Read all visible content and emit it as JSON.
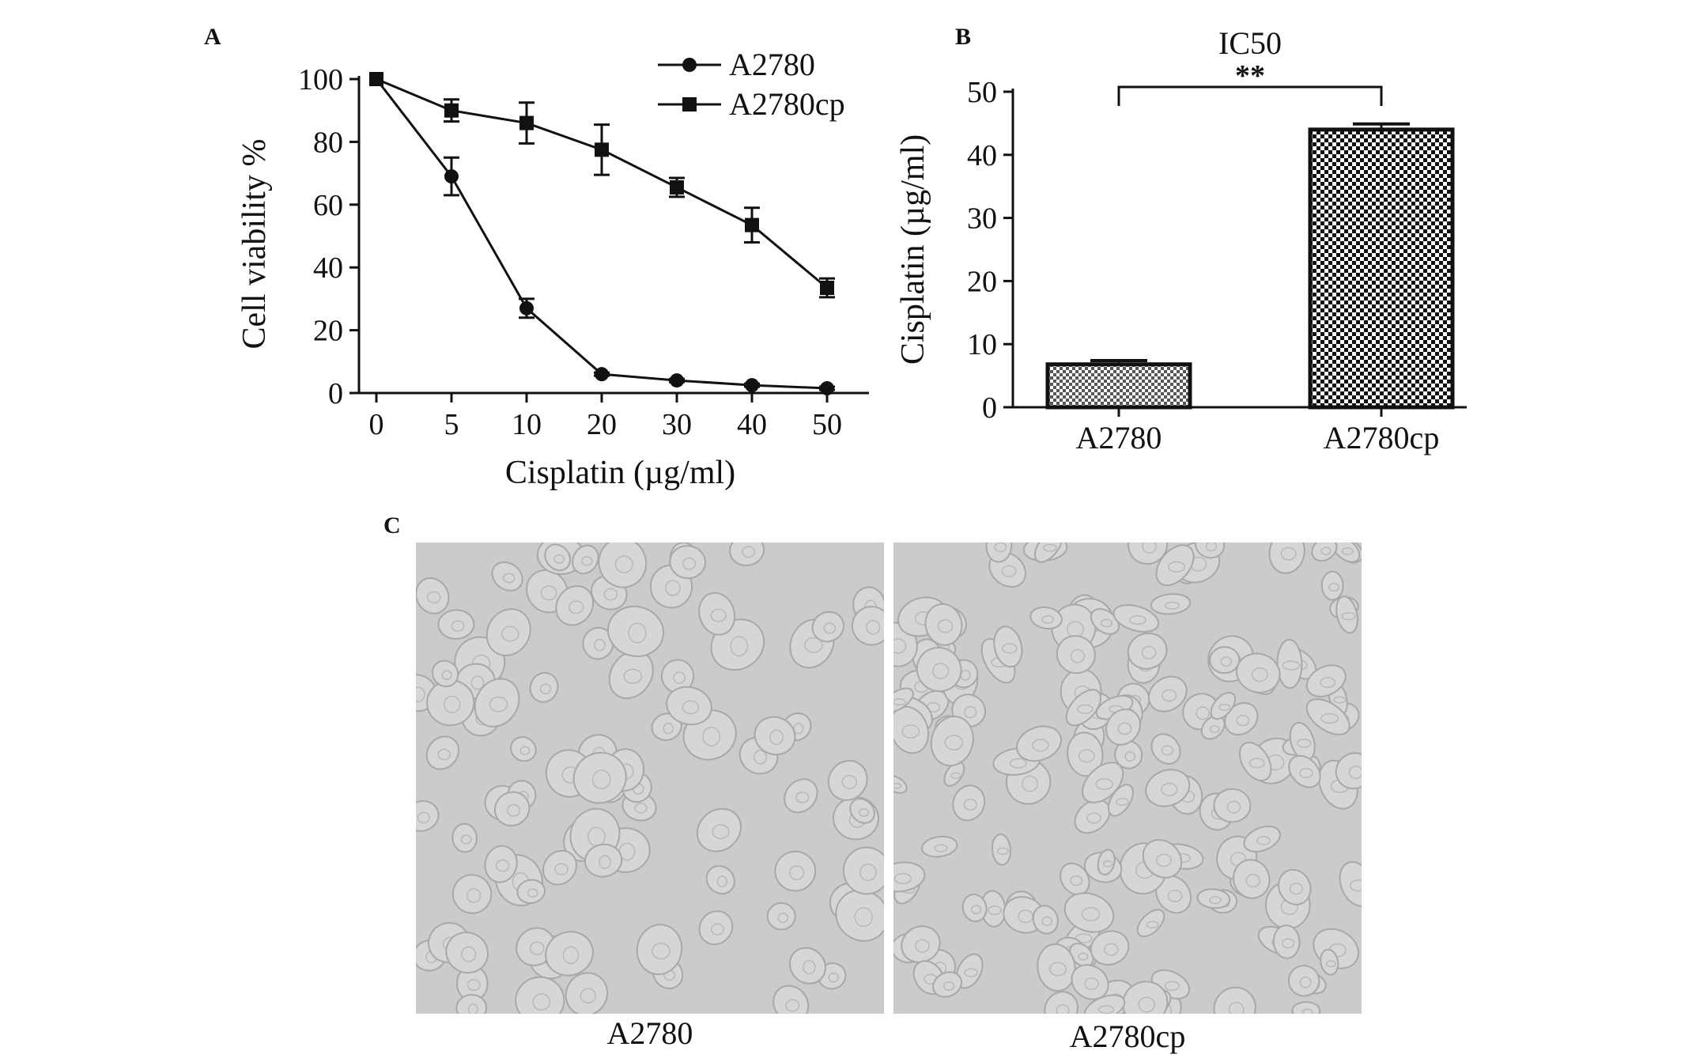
{
  "panels": {
    "A": "A",
    "B": "B",
    "C": "C"
  },
  "chart_data": [
    {
      "panel": "A",
      "type": "line",
      "xlabel": "Cisplatin (µg/ml)",
      "ylabel": "Cell viability %",
      "categories": [
        "0",
        "5",
        "10",
        "20",
        "30",
        "40",
        "50"
      ],
      "ylim": [
        0,
        100
      ],
      "yticks": [
        "0",
        "20",
        "40",
        "60",
        "80",
        "100"
      ],
      "legend_position": "top-right",
      "series": [
        {
          "name": "A2780",
          "marker": "circle",
          "values": [
            100,
            69,
            27,
            6,
            4,
            2.5,
            1.5
          ],
          "errors": [
            0,
            6,
            3,
            0.5,
            0.5,
            0.5,
            0.5
          ]
        },
        {
          "name": "A2780cp",
          "marker": "square",
          "values": [
            100,
            90,
            86,
            77.5,
            65.5,
            53.5,
            33.5
          ],
          "errors": [
            0,
            3.5,
            6.5,
            8,
            3,
            5.5,
            3
          ]
        }
      ]
    },
    {
      "panel": "B",
      "type": "bar",
      "title": "IC50",
      "ylabel": "Cisplatin (µg/ml)",
      "categories": [
        "A2780",
        "A2780cp"
      ],
      "values": [
        6.8,
        44
      ],
      "errors": [
        0.6,
        0.9
      ],
      "ylim": [
        0,
        50
      ],
      "yticks": [
        "0",
        "10",
        "20",
        "30",
        "40",
        "50"
      ],
      "significance": "**"
    }
  ],
  "micrographs": {
    "left_caption": "A2780",
    "right_caption": "A2780cp"
  }
}
